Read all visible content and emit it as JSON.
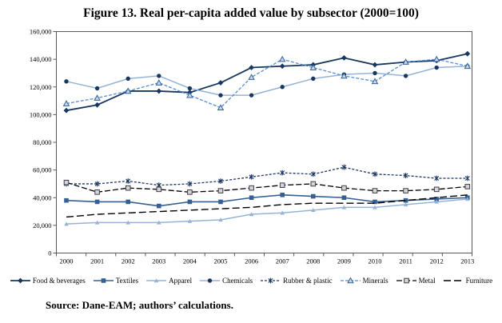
{
  "title": "Figure 13. Real per-capita added value by subsector (2000=100)",
  "source": "Source: Dane-EAM; authors’ calculations.",
  "chart_data": {
    "type": "line",
    "x": [
      2000,
      2001,
      2002,
      2003,
      2004,
      2005,
      2006,
      2007,
      2008,
      2009,
      2010,
      2011,
      2012,
      2013
    ],
    "series": [
      {
        "name": "Food & beverages",
        "color": "#17375E",
        "dash": "none",
        "marker": "diamond",
        "marker_color": "#17375E",
        "width": 1.8,
        "values": [
          103000,
          107000,
          117000,
          117000,
          116000,
          123000,
          134000,
          135000,
          136000,
          141000,
          136000,
          138000,
          139000,
          144000
        ]
      },
      {
        "name": "Textiles",
        "color": "#376092",
        "dash": "none",
        "marker": "square",
        "marker_color": "#376092",
        "width": 1.6,
        "values": [
          38000,
          37000,
          37000,
          34000,
          37000,
          37000,
          40000,
          42000,
          41000,
          40000,
          37000,
          38000,
          39000,
          40000
        ]
      },
      {
        "name": "Apparel",
        "color": "#95B3D7",
        "dash": "none",
        "marker": "triangle-small",
        "marker_color": "#95B3D7",
        "width": 1.5,
        "values": [
          21000,
          22000,
          22000,
          22000,
          23000,
          24000,
          28000,
          29000,
          31000,
          33000,
          33000,
          35000,
          37000,
          39000
        ]
      },
      {
        "name": "Chemicals",
        "color": "#95B3D7",
        "dash": "none",
        "marker": "circle",
        "marker_color": "#17375E",
        "width": 1.5,
        "values": [
          124000,
          119000,
          126000,
          128000,
          119000,
          114000,
          114000,
          120000,
          126000,
          129000,
          130000,
          128000,
          134000,
          135000
        ]
      },
      {
        "name": "Rubber & plastic",
        "color": "#1F3864",
        "dash": "3 2",
        "marker": "asterisk",
        "marker_color": "#1F3864",
        "width": 1.3,
        "values": [
          50000,
          50000,
          52000,
          49000,
          50000,
          52000,
          55000,
          58000,
          57000,
          62000,
          57000,
          56000,
          54000,
          54000
        ]
      },
      {
        "name": "Minerals",
        "color": "#558ED5",
        "dash": "4 2",
        "marker": "triangle-open",
        "marker_color": "#376092",
        "width": 1.3,
        "values": [
          108000,
          112000,
          117000,
          123000,
          114000,
          105000,
          127000,
          140000,
          134000,
          128000,
          124000,
          138000,
          140000,
          135000
        ]
      },
      {
        "name": "Metal",
        "color": "#000000",
        "dash": "7 3",
        "marker": "square-open",
        "marker_color": "#3F3F3F",
        "width": 1.3,
        "values": [
          51000,
          44000,
          47000,
          46000,
          44000,
          45000,
          47000,
          49000,
          50000,
          47000,
          45000,
          45000,
          46000,
          48000
        ]
      },
      {
        "name": "Furniture",
        "color": "#000000",
        "dash": "9 4",
        "marker": "none",
        "marker_color": "#000000",
        "width": 1.4,
        "values": [
          26000,
          28000,
          29000,
          30000,
          31000,
          32000,
          33000,
          35000,
          36000,
          36000,
          36000,
          38000,
          40000,
          42000
        ]
      }
    ],
    "ylim": [
      0,
      160000
    ],
    "y_tick_step": 20000,
    "y_tick_labels": [
      "0",
      "20,000",
      "40,000",
      "60,000",
      "80,000",
      "100,000",
      "120,000",
      "140,000",
      "160,000"
    ],
    "x_tick_labels": [
      "2000",
      "2001",
      "2002",
      "2003",
      "2004",
      "2005",
      "2006",
      "2007",
      "2008",
      "2009",
      "2010",
      "2011",
      "2012",
      "2013"
    ],
    "grid": false,
    "legend_position": "bottom",
    "axis_color": "#595959"
  }
}
